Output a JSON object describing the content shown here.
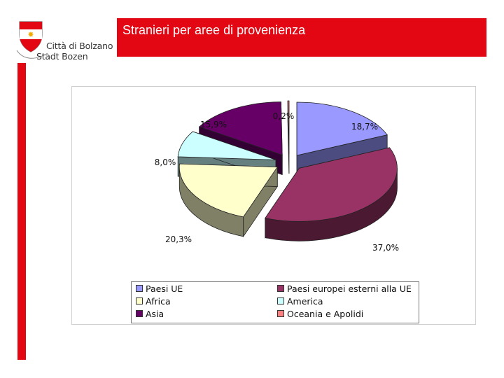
{
  "header": {
    "title": "Stranieri per aree di provenienza",
    "logo_line1": "Città di Bolzano",
    "logo_line2": "Stadt Bozen"
  },
  "chart_data": {
    "type": "pie",
    "title": "",
    "series": [
      {
        "name": "Paesi UE",
        "value": 18.7,
        "label": "18,7%",
        "color": "#9999ff",
        "side": "#4c4c80"
      },
      {
        "name": "Paesi europei esterni alla UE",
        "value": 37.0,
        "label": "37,0%",
        "color": "#993366",
        "side": "#4c1933"
      },
      {
        "name": "Africa",
        "value": 20.3,
        "label": "20,3%",
        "color": "#ffffcc",
        "side": "#808066"
      },
      {
        "name": "America",
        "value": 8.0,
        "label": "8,0%",
        "color": "#ccffff",
        "side": "#668080"
      },
      {
        "name": "Asia",
        "value": 15.9,
        "label": "15,9%",
        "color": "#660066",
        "side": "#330033"
      },
      {
        "name": "Oceania e Apolidi",
        "value": 0.2,
        "label": "0,2%",
        "color": "#ff8080",
        "side": "#804040"
      }
    ],
    "legend_position": "bottom"
  }
}
